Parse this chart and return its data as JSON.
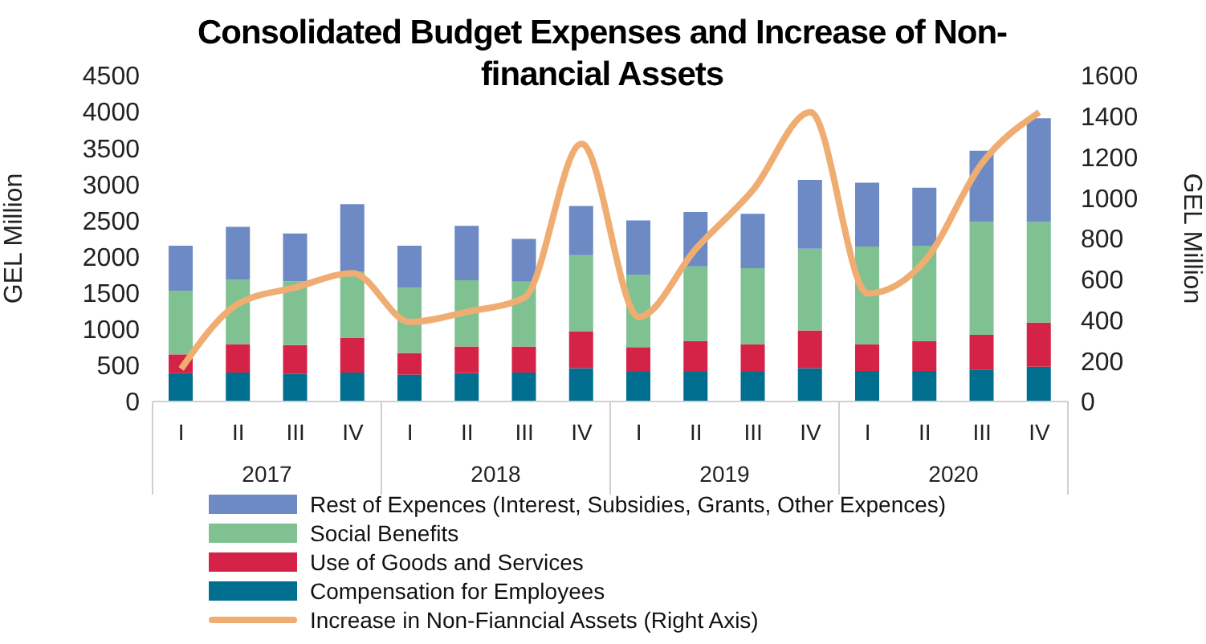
{
  "chart_data": {
    "type": "bar",
    "stacked": true,
    "title": "Consolidated Budget Expenses and Increase of Non-financial Assets",
    "ylabel": "GEL Million",
    "y2label": "GEL Million",
    "categories": [
      "I",
      "II",
      "III",
      "IV",
      "I",
      "II",
      "III",
      "IV",
      "I",
      "II",
      "III",
      "IV",
      "I",
      "II",
      "III",
      "IV"
    ],
    "annotations": [
      "2017",
      "2018",
      "2019",
      "2020"
    ],
    "series": [
      {
        "name": "Compensation for Employees",
        "color": "#006f8f",
        "values": [
          390,
          400,
          380,
          400,
          370,
          390,
          400,
          460,
          410,
          410,
          410,
          460,
          420,
          420,
          440,
          480
        ]
      },
      {
        "name": "Use of Goods and Services",
        "color": "#d42346",
        "values": [
          260,
          390,
          400,
          480,
          300,
          370,
          360,
          510,
          340,
          420,
          380,
          520,
          370,
          410,
          480,
          610
        ]
      },
      {
        "name": "Social Benefits",
        "color": "#7fc191",
        "values": [
          880,
          890,
          880,
          915,
          900,
          915,
          895,
          1050,
          1000,
          1035,
          1050,
          1130,
          1350,
          1320,
          1560,
          1390
        ]
      },
      {
        "name": "Rest of Expences (Interest, Subsidies, Grants, Other Expences)",
        "color": "#6d8ac4",
        "values": [
          620,
          730,
          660,
          930,
          580,
          750,
          590,
          680,
          750,
          750,
          750,
          950,
          880,
          800,
          980,
          1430
        ]
      },
      {
        "name": "Increase in Non-Fianncial Assets (Right Axis)",
        "type": "line",
        "axis": "y2",
        "color": "#f0ad72",
        "values": [
          160,
          480,
          560,
          630,
          390,
          440,
          510,
          1265,
          415,
          750,
          1040,
          1420,
          530,
          690,
          1170,
          1420
        ]
      }
    ],
    "ylim": [
      0,
      4500
    ],
    "yticks": [
      0,
      500,
      1000,
      1500,
      2000,
      2500,
      3000,
      3500,
      4000,
      4500
    ],
    "y2lim": [
      0,
      1600
    ],
    "y2ticks": [
      0,
      200,
      400,
      600,
      800,
      1000,
      1200,
      1400,
      1600
    ],
    "grid": false,
    "legend": "bottom",
    "marker": "none",
    "line_style": "solid"
  }
}
